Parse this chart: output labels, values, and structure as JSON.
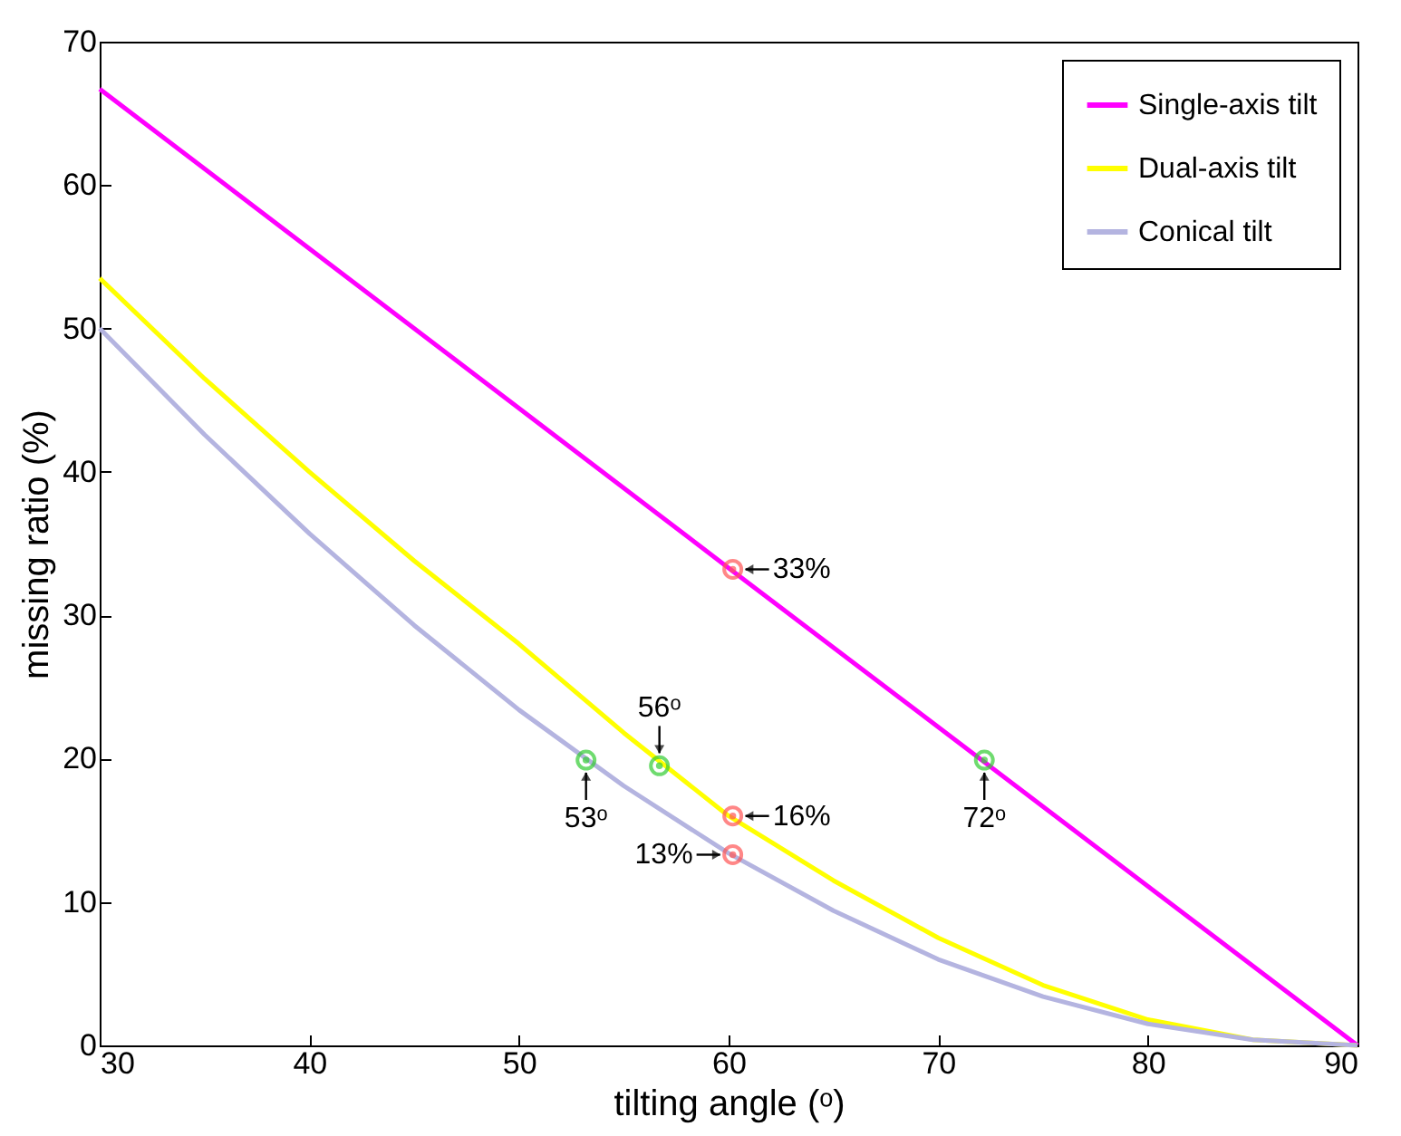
{
  "chart_data": {
    "type": "line",
    "xlabel": "tilting angle (ᵒ)",
    "ylabel": "missing ratio (%)",
    "xlim": [
      30,
      90
    ],
    "xticks": [
      30,
      40,
      50,
      60,
      70,
      80,
      90
    ],
    "ylim": [
      0,
      70
    ],
    "yticks": [
      0,
      10,
      20,
      30,
      40,
      50,
      60,
      70
    ],
    "grid": false,
    "legend": "top right",
    "marker": "none",
    "line_style": "solid",
    "series": [
      {
        "name": "Single-axis tilt",
        "color": "#ff00ff",
        "x": [
          30,
          60,
          90
        ],
        "values": [
          66.7,
          33.3,
          0
        ]
      },
      {
        "name": "Dual-axis tilt",
        "color": "#ffff00",
        "x": [
          30,
          35,
          40,
          45,
          50,
          55,
          60,
          65,
          70,
          75,
          80,
          85,
          90
        ],
        "values": [
          53.5,
          46.5,
          40,
          33.8,
          28,
          21.8,
          16,
          11.5,
          7.5,
          4.2,
          1.8,
          0.4,
          0
        ]
      },
      {
        "name": "Conical tilt",
        "color": "#b4b4e0",
        "x": [
          30,
          35,
          40,
          45,
          50,
          55,
          60,
          65,
          70,
          75,
          80,
          85,
          90
        ],
        "values": [
          50,
          42.6,
          35.7,
          29.3,
          23.4,
          18.1,
          13.4,
          9.4,
          6,
          3.4,
          1.5,
          0.4,
          0
        ]
      },
      {
        "type": "scatter",
        "color": "#33cc33",
        "marker": "circle",
        "x": [
          53.2,
          56.7,
          72.2
        ],
        "values": [
          19.9,
          19.5,
          19.9
        ]
      },
      {
        "type": "scatter",
        "color": "#ff5555",
        "marker": "circle",
        "x": [
          60.2,
          60.2,
          60.2
        ],
        "values": [
          33.2,
          16,
          13.3
        ]
      }
    ],
    "annotations": [
      {
        "text": "33%",
        "x": 60.2,
        "y": 33.2
      },
      {
        "text": "16%",
        "x": 60.2,
        "y": 16
      },
      {
        "text": "13%",
        "x": 60.2,
        "y": 13.3
      },
      {
        "text": "56ᵒ",
        "x": 56.7,
        "y": 19.5
      },
      {
        "text": "53ᵒ",
        "x": 53.2,
        "y": 19.9
      },
      {
        "text": "72ᵒ",
        "x": 72.2,
        "y": 19.9
      }
    ]
  }
}
